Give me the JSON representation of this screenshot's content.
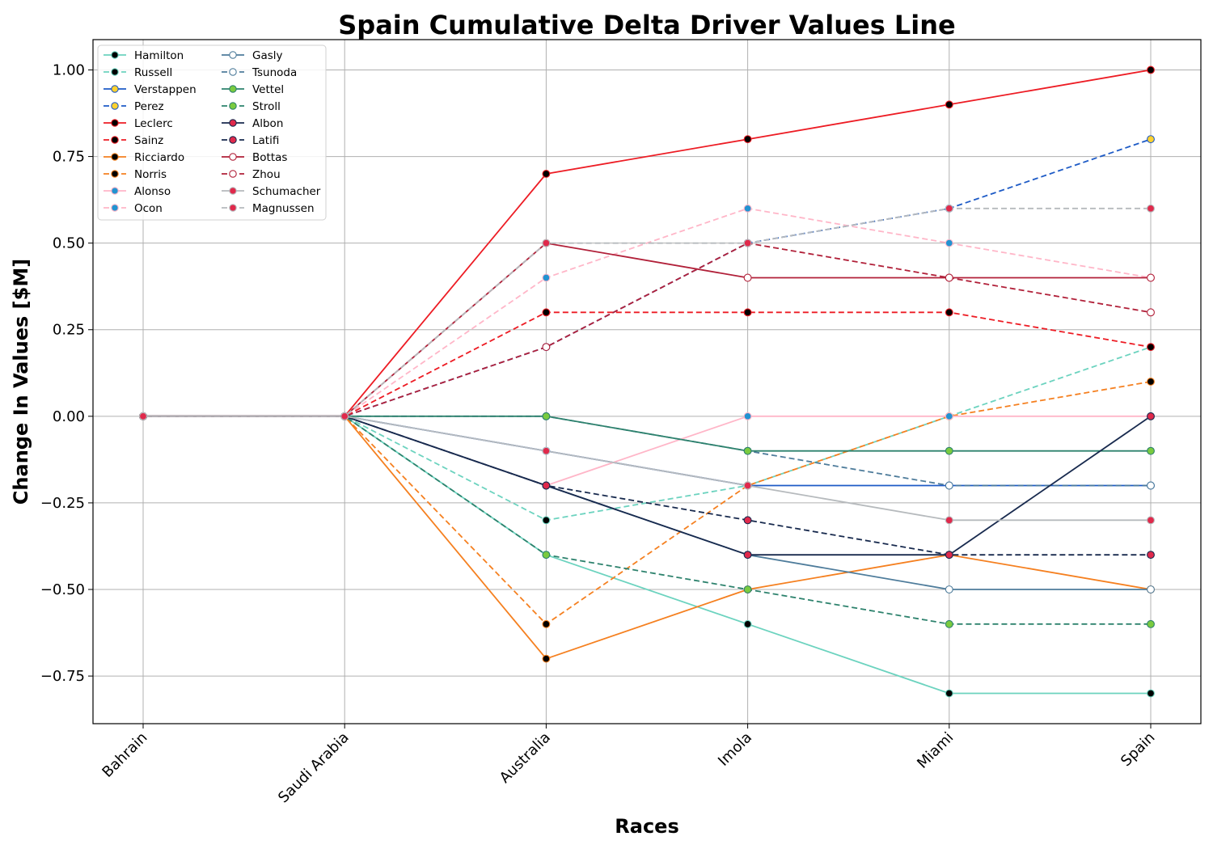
{
  "chart_data": {
    "type": "line",
    "title": "Spain Cumulative Delta Driver Values Line",
    "xlabel": "Races",
    "ylabel": "Change In Values [$M]",
    "categories": [
      "Bahrain",
      "Saudi Arabia",
      "Australia",
      "Imola",
      "Miami",
      "Spain"
    ],
    "ylim": [
      -0.8875,
      1.0875
    ],
    "yticks": [
      -0.75,
      -0.5,
      -0.25,
      0.0,
      0.25,
      0.5,
      0.75,
      1.0
    ],
    "ytick_labels": [
      "−0.75",
      "−0.50",
      "−0.25",
      "0.00",
      "0.25",
      "0.50",
      "0.75",
      "1.00"
    ],
    "grid": true,
    "legend_position": "upper-left",
    "series": [
      {
        "name": "Hamilton",
        "values": [
          0,
          0,
          -0.4,
          -0.6,
          -0.8,
          -0.8
        ],
        "color": "#6CD3BF",
        "dash": false,
        "marker_fill": "#000000",
        "marker_edge": "#6CD3BF"
      },
      {
        "name": "Russell",
        "values": [
          0,
          0,
          -0.3,
          -0.2,
          0.0,
          0.2
        ],
        "color": "#6CD3BF",
        "dash": true,
        "marker_fill": "#000000",
        "marker_edge": "#6CD3BF"
      },
      {
        "name": "Verstappen",
        "values": [
          0,
          0,
          -0.1,
          -0.2,
          -0.2,
          -0.2
        ],
        "color": "#1E5BC6",
        "dash": false,
        "marker_fill": "#FFD12E",
        "marker_edge": "#1E5BC6"
      },
      {
        "name": "Perez",
        "values": [
          0,
          0,
          0.2,
          0.5,
          0.6,
          0.8
        ],
        "color": "#1E5BC6",
        "dash": true,
        "marker_fill": "#FFD12E",
        "marker_edge": "#1E5BC6"
      },
      {
        "name": "Leclerc",
        "values": [
          0,
          0,
          0.7,
          0.8,
          0.9,
          1.0
        ],
        "color": "#ED1C24",
        "dash": false,
        "marker_fill": "#000000",
        "marker_edge": "#ED1C24"
      },
      {
        "name": "Sainz",
        "values": [
          0,
          0,
          0.3,
          0.3,
          0.3,
          0.2
        ],
        "color": "#ED1C24",
        "dash": true,
        "marker_fill": "#000000",
        "marker_edge": "#ED1C24"
      },
      {
        "name": "Ricciardo",
        "values": [
          0,
          0,
          -0.7,
          -0.5,
          -0.4,
          -0.5
        ],
        "color": "#F58020",
        "dash": false,
        "marker_fill": "#000000",
        "marker_edge": "#F58020"
      },
      {
        "name": "Norris",
        "values": [
          0,
          0,
          -0.6,
          -0.2,
          0.0,
          0.1
        ],
        "color": "#F58020",
        "dash": true,
        "marker_fill": "#000000",
        "marker_edge": "#F58020"
      },
      {
        "name": "Alonso",
        "values": [
          0,
          0,
          -0.2,
          0.0,
          0.0,
          0.0
        ],
        "color": "#FFB6C8",
        "dash": false,
        "marker_fill": "#2293D1",
        "marker_edge": "#FFB6C8"
      },
      {
        "name": "Ocon",
        "values": [
          0,
          0,
          0.4,
          0.6,
          0.5,
          0.4
        ],
        "color": "#FFB6C8",
        "dash": true,
        "marker_fill": "#2293D1",
        "marker_edge": "#FFB6C8"
      },
      {
        "name": "Gasly",
        "values": [
          0,
          0,
          -0.2,
          -0.4,
          -0.5,
          -0.5
        ],
        "color": "#4E7C9B",
        "dash": false,
        "marker_fill": "#FFFFFF",
        "marker_edge": "#4E7C9B"
      },
      {
        "name": "Tsunoda",
        "values": [
          0,
          0,
          0.0,
          -0.1,
          -0.2,
          -0.2
        ],
        "color": "#4E7C9B",
        "dash": true,
        "marker_fill": "#FFFFFF",
        "marker_edge": "#4E7C9B"
      },
      {
        "name": "Vettel",
        "values": [
          0,
          0,
          0.0,
          -0.1,
          -0.1,
          -0.1
        ],
        "color": "#2D826D",
        "dash": false,
        "marker_fill": "#7ACB3F",
        "marker_edge": "#2D826D"
      },
      {
        "name": "Stroll",
        "values": [
          0,
          0,
          -0.4,
          -0.5,
          -0.6,
          -0.6
        ],
        "color": "#2D826D",
        "dash": true,
        "marker_fill": "#7ACB3F",
        "marker_edge": "#2D826D"
      },
      {
        "name": "Albon",
        "values": [
          0,
          0,
          -0.2,
          -0.4,
          -0.4,
          0.0
        ],
        "color": "#182A4E",
        "dash": false,
        "marker_fill": "#E0294B",
        "marker_edge": "#182A4E"
      },
      {
        "name": "Latifi",
        "values": [
          0,
          0,
          -0.2,
          -0.3,
          -0.4,
          -0.4
        ],
        "color": "#182A4E",
        "dash": true,
        "marker_fill": "#E0294B",
        "marker_edge": "#182A4E"
      },
      {
        "name": "Bottas",
        "values": [
          0,
          0,
          0.5,
          0.4,
          0.4,
          0.4
        ],
        "color": "#B12039",
        "dash": false,
        "marker_fill": "#FFFFFF",
        "marker_edge": "#B12039"
      },
      {
        "name": "Zhou",
        "values": [
          0,
          0,
          0.2,
          0.5,
          0.4,
          0.3
        ],
        "color": "#B12039",
        "dash": true,
        "marker_fill": "#FFFFFF",
        "marker_edge": "#B12039"
      },
      {
        "name": "Schumacher",
        "values": [
          0,
          0,
          -0.1,
          -0.2,
          -0.3,
          -0.3
        ],
        "color": "#B6BABD",
        "dash": false,
        "marker_fill": "#E0294B",
        "marker_edge": "#B6BABD"
      },
      {
        "name": "Magnussen",
        "values": [
          0,
          0,
          0.5,
          0.5,
          0.6,
          0.6
        ],
        "color": "#B6BABD",
        "dash": true,
        "marker_fill": "#E0294B",
        "marker_edge": "#B6BABD"
      }
    ]
  }
}
